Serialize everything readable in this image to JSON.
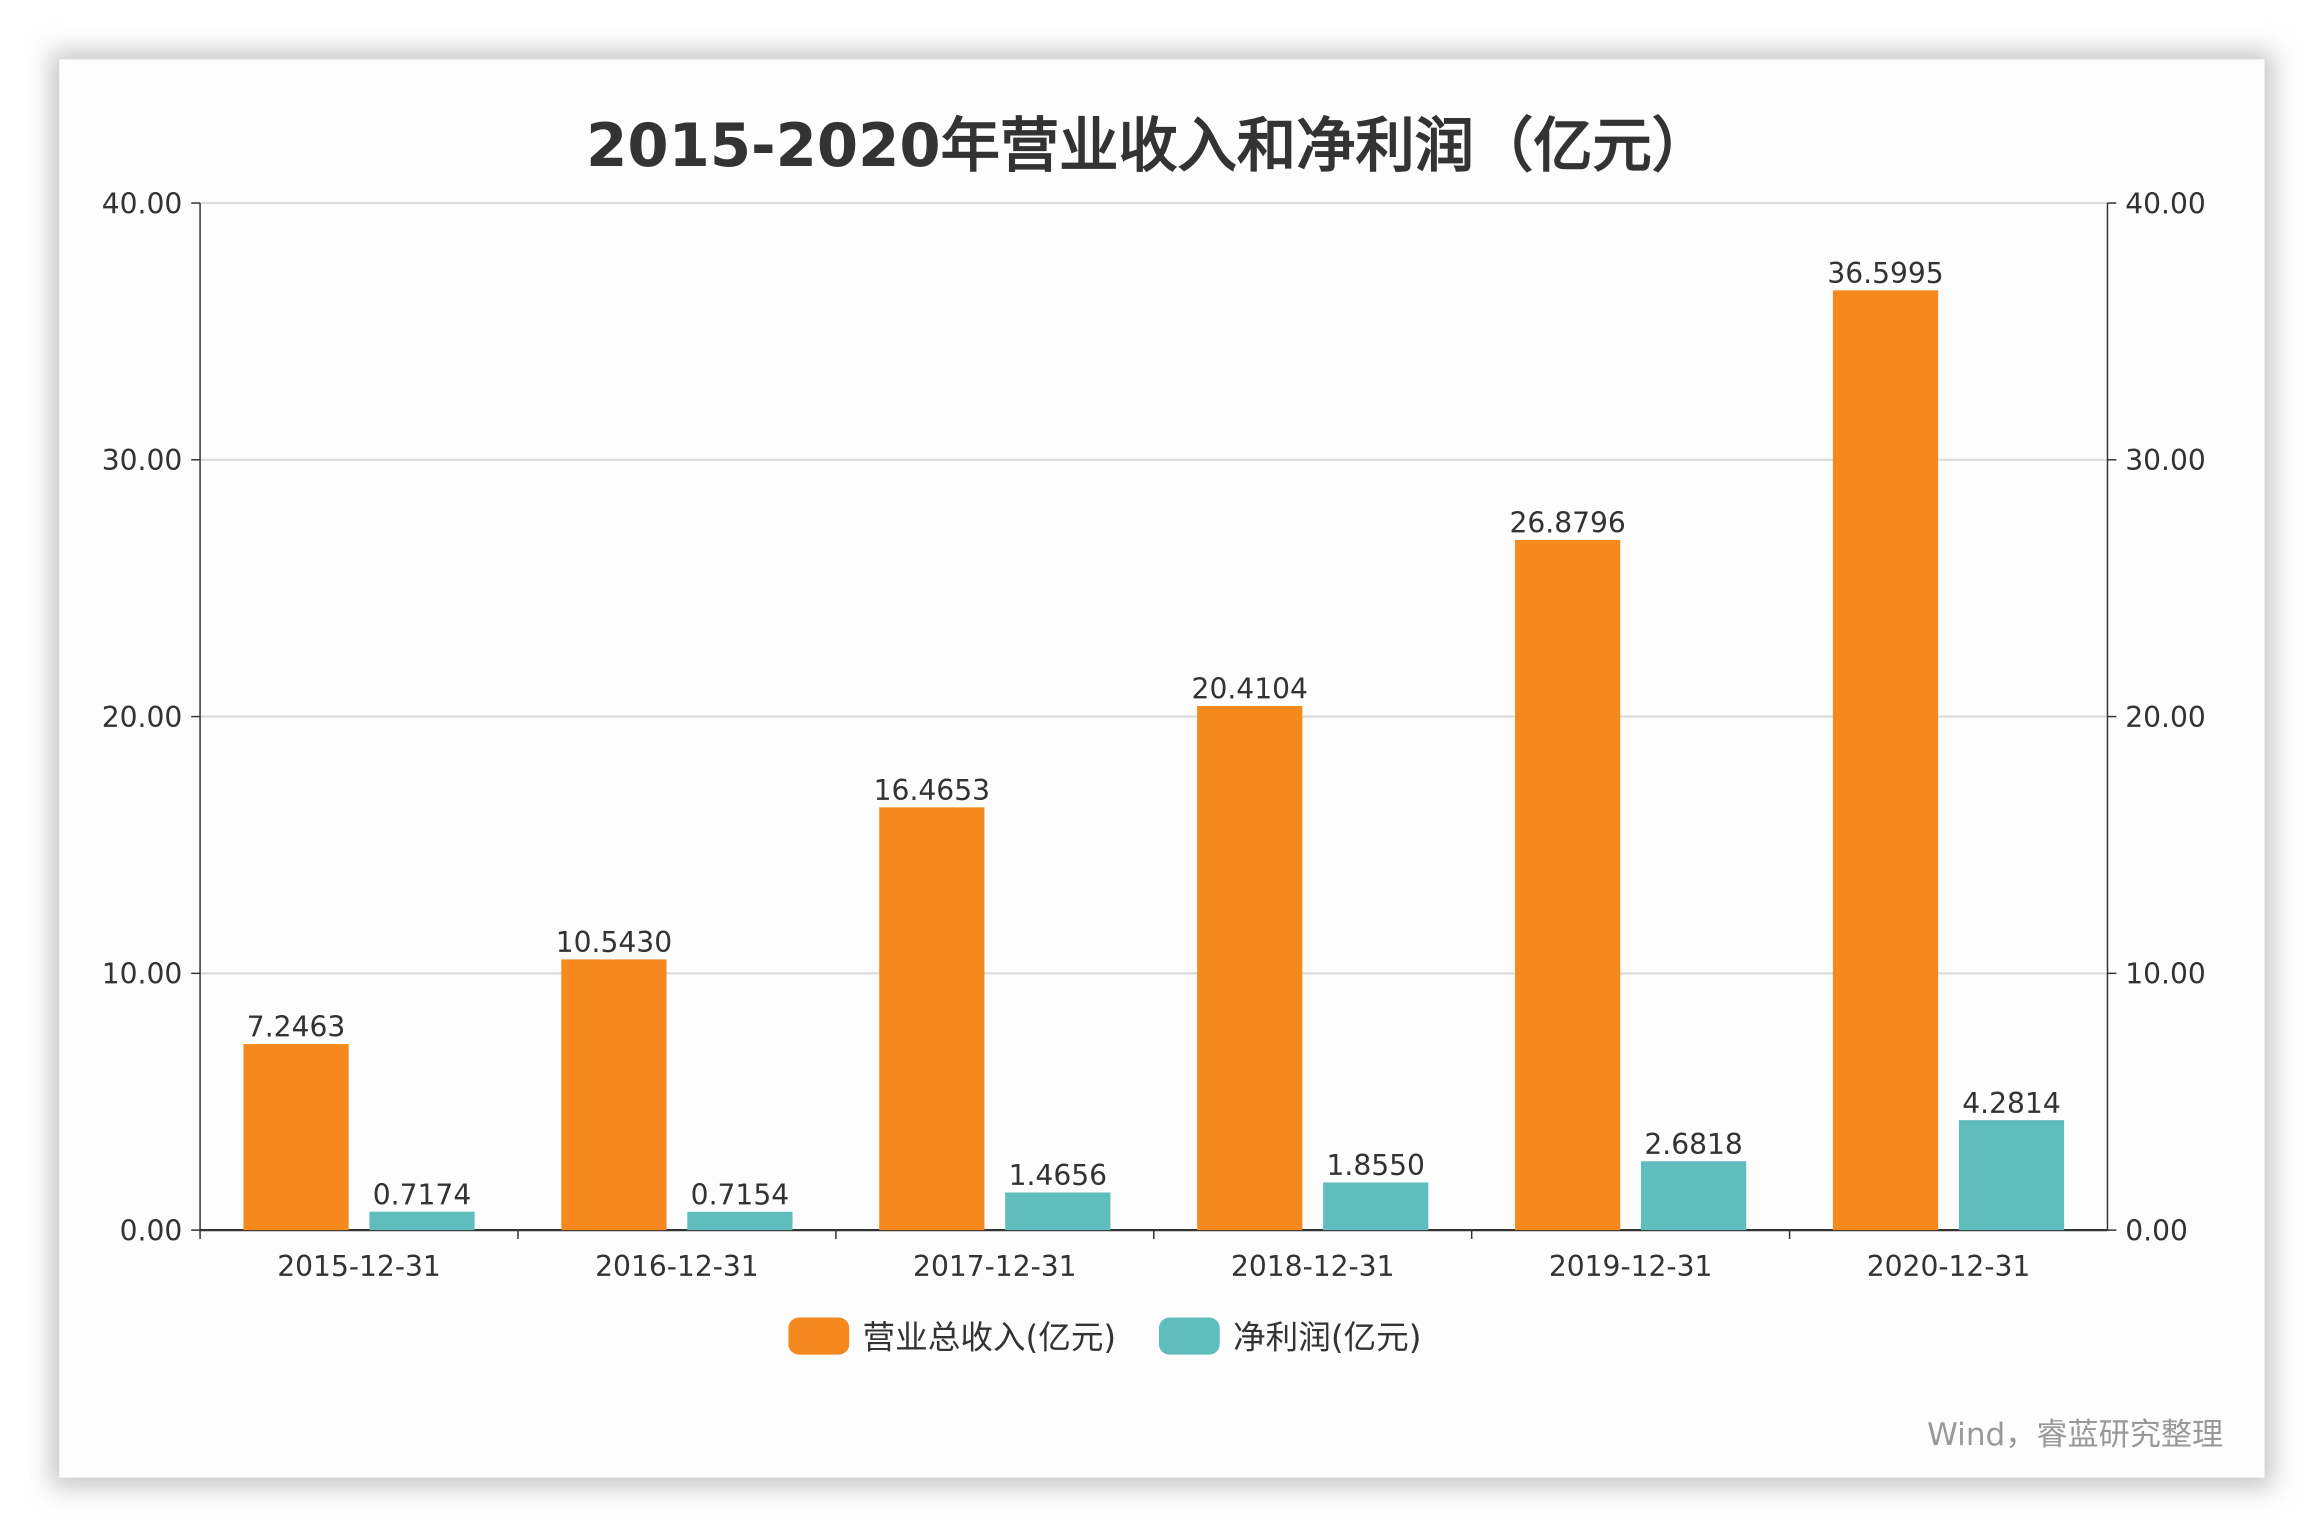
{
  "chart_data": {
    "type": "bar",
    "title": "2015-2020年营业收入和净利润（亿元）",
    "categories": [
      "2015-12-31",
      "2016-12-31",
      "2017-12-31",
      "2018-12-31",
      "2019-12-31",
      "2020-12-31"
    ],
    "series": [
      {
        "name": "营业总收入(亿元)",
        "color": "#f5891e",
        "values": [
          7.2463,
          10.543,
          16.4653,
          20.4104,
          26.8796,
          36.5995
        ],
        "labels": [
          "7.2463",
          "10.5430",
          "16.4653",
          "20.4104",
          "26.8796",
          "36.5995"
        ]
      },
      {
        "name": "净利润(亿元)",
        "color": "#5fbdbd",
        "values": [
          0.7174,
          0.7154,
          1.4656,
          1.855,
          2.6818,
          4.2814
        ],
        "labels": [
          "0.7174",
          "0.7154",
          "1.4656",
          "1.8550",
          "2.6818",
          "4.2814"
        ]
      }
    ],
    "ylim": [
      0,
      40
    ],
    "yticks": [
      "0.00",
      "10.00",
      "20.00",
      "30.00",
      "40.00"
    ],
    "secondary_yticks": [
      "0.00",
      "10.00",
      "20.00",
      "30.00",
      "40.00"
    ],
    "grid": true,
    "legend": "bottom",
    "source": "Wind，睿蓝研究整理"
  }
}
